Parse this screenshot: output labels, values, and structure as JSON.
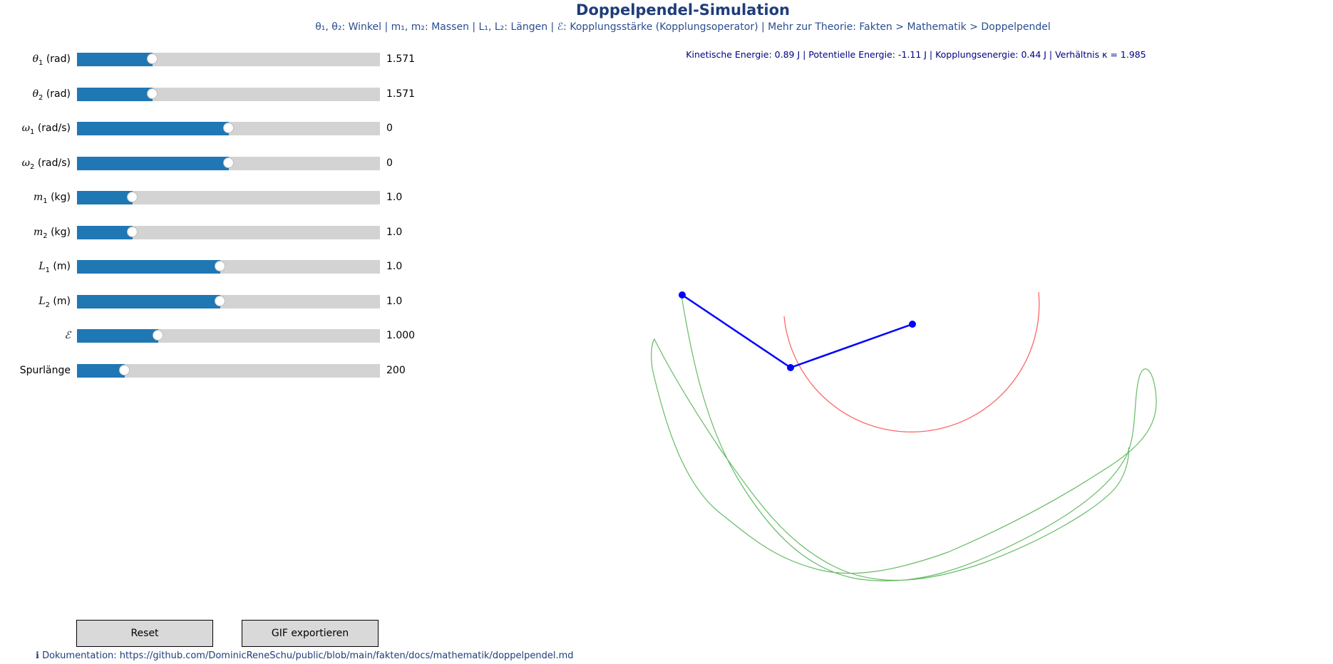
{
  "header": {
    "title": "Doppelpendel-Simulation",
    "subtitle": "θ₁, θ₂: Winkel | m₁, m₂: Massen | L₁, L₂: Längen | ℰ: Kopplungsstärke (Kopplungsoperator) | Mehr zur Theorie: Fakten > Mathematik > Doppelpendel"
  },
  "energy_readout": "Kinetische Energie: 0.89 J | Potentielle Energie: -1.11 J | Kopplungsenergie: 0.44 J | Verhältnis κ = 1.985",
  "sliders": [
    {
      "symbol": "θ",
      "sub": "1",
      "unit": " (rad)",
      "value": "1.571",
      "fraction": 0.25
    },
    {
      "symbol": "θ",
      "sub": "2",
      "unit": " (rad)",
      "value": "1.571",
      "fraction": 0.25
    },
    {
      "symbol": "ω",
      "sub": "1",
      "unit": " (rad/s)",
      "value": "0",
      "fraction": 0.5
    },
    {
      "symbol": "ω",
      "sub": "2",
      "unit": " (rad/s)",
      "value": "0",
      "fraction": 0.5
    },
    {
      "symbol": "m",
      "sub": "1",
      "unit": " (kg)",
      "value": "1.0",
      "fraction": 0.183
    },
    {
      "symbol": "m",
      "sub": "2",
      "unit": " (kg)",
      "value": "1.0",
      "fraction": 0.183
    },
    {
      "symbol": "L",
      "sub": "1",
      "unit": " (m)",
      "value": "1.0",
      "fraction": 0.474
    },
    {
      "symbol": "L",
      "sub": "2",
      "unit": " (m)",
      "value": "1.0",
      "fraction": 0.474
    },
    {
      "symbol": "ℰ",
      "sub": "",
      "unit": "",
      "value": "1.000",
      "fraction": 0.268
    },
    {
      "symbol": "",
      "sub": "",
      "unit": "Spurlänge",
      "value": "200",
      "fraction": 0.158
    }
  ],
  "buttons": {
    "reset": "Reset",
    "gif": "GIF exportieren"
  },
  "doc_link": "ℹ Dokumentation: https://github.com/DominicReneSchu/public/blob/main/fakten/docs/mathematik/doppelpendel.md",
  "colors": {
    "pendulum": "#0000ff",
    "trace": "#66bb66",
    "coupling_circle": "#ff6666",
    "slider_fill": "#1f77b4",
    "slider_track": "#d3d3d3",
    "title": "#1f3d7a"
  }
}
